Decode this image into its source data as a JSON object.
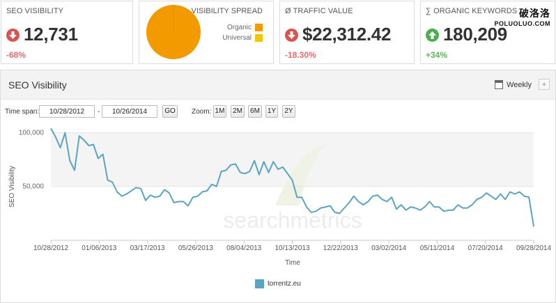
{
  "kpi": {
    "visibility": {
      "title": "SEO VISIBILITY",
      "value": "12,731",
      "change": "-68%",
      "direction": "down",
      "icon": "arrow-down-icon"
    },
    "spread": {
      "title": "VISIBILITY SPREAD",
      "organic_label": "Organic",
      "universal_label": "Universal",
      "organic_color": "#f39a00",
      "universal_color": "#f2c500",
      "organic_share": 1.0
    },
    "traffic": {
      "title": "Ø TRAFFIC VALUE",
      "value": "$22,312.42",
      "change": "-18.30%",
      "direction": "down",
      "icon": "arrow-down-icon"
    },
    "keywords": {
      "title": "∑ ORGANIC KEYWORDS",
      "value": "180,209",
      "change": "+34%",
      "direction": "up",
      "icon": "arrow-up-icon"
    }
  },
  "watermark": {
    "big": "破洛洛",
    "small": "POLUOLUO.COM"
  },
  "panel": {
    "title": "SEO Visibility",
    "interval_label": "Weekly",
    "interval_icon": "calendar-icon",
    "add_label": "+"
  },
  "controls": {
    "timespan_label": "Time span:",
    "start_date": "10/28/2012",
    "separator": "-",
    "end_date": "10/26/2014",
    "go_label": "GO",
    "zoom_label": "Zoom:",
    "zoom_options": [
      "1M",
      "2M",
      "6M",
      "1Y",
      "2Y"
    ]
  },
  "chart_data": {
    "type": "line",
    "ylabel": "SEO Visibility",
    "xlabel": "Time",
    "watermark_text": "searchmetrics",
    "ylim": [
      0,
      110000
    ],
    "y_ticks": [
      50000,
      100000
    ],
    "y_tick_labels": [
      "50,000",
      "100,000"
    ],
    "x_tick_labels": [
      "10/28/2012",
      "01/06/2013",
      "03/17/2013",
      "05/26/2013",
      "08/04/2013",
      "10/13/2013",
      "12/22/2013",
      "03/02/2014",
      "05/11/2014",
      "07/20/2014",
      "09/28/2014"
    ],
    "legend_position": "bottom-center",
    "series": [
      {
        "name": "torrentz.eu",
        "color": "#5aa3c1",
        "values": [
          104000,
          96000,
          86000,
          100000,
          74000,
          65000,
          97000,
          93000,
          88000,
          89000,
          76000,
          80000,
          56000,
          54000,
          45000,
          41000,
          43000,
          46000,
          49000,
          48000,
          37000,
          42000,
          40000,
          41000,
          47000,
          44000,
          35000,
          36000,
          36000,
          32000,
          40000,
          41000,
          45000,
          46000,
          52000,
          50000,
          64000,
          65000,
          70000,
          71000,
          63000,
          62000,
          64000,
          74000,
          61000,
          73000,
          63000,
          73000,
          66000,
          68000,
          62000,
          56000,
          40000,
          40000,
          31000,
          26000,
          27000,
          30000,
          31000,
          32000,
          26000,
          25000,
          30000,
          35000,
          41000,
          36000,
          33000,
          36000,
          41000,
          42000,
          38000,
          36000,
          40000,
          29000,
          33000,
          28000,
          31000,
          30000,
          28000,
          31000,
          36000,
          31000,
          31000,
          27000,
          28000,
          28000,
          33000,
          30000,
          30000,
          33000,
          38000,
          40000,
          44000,
          41000,
          38000,
          43000,
          38000,
          45000,
          43000,
          45000,
          41000,
          40000,
          12731
        ]
      }
    ]
  }
}
